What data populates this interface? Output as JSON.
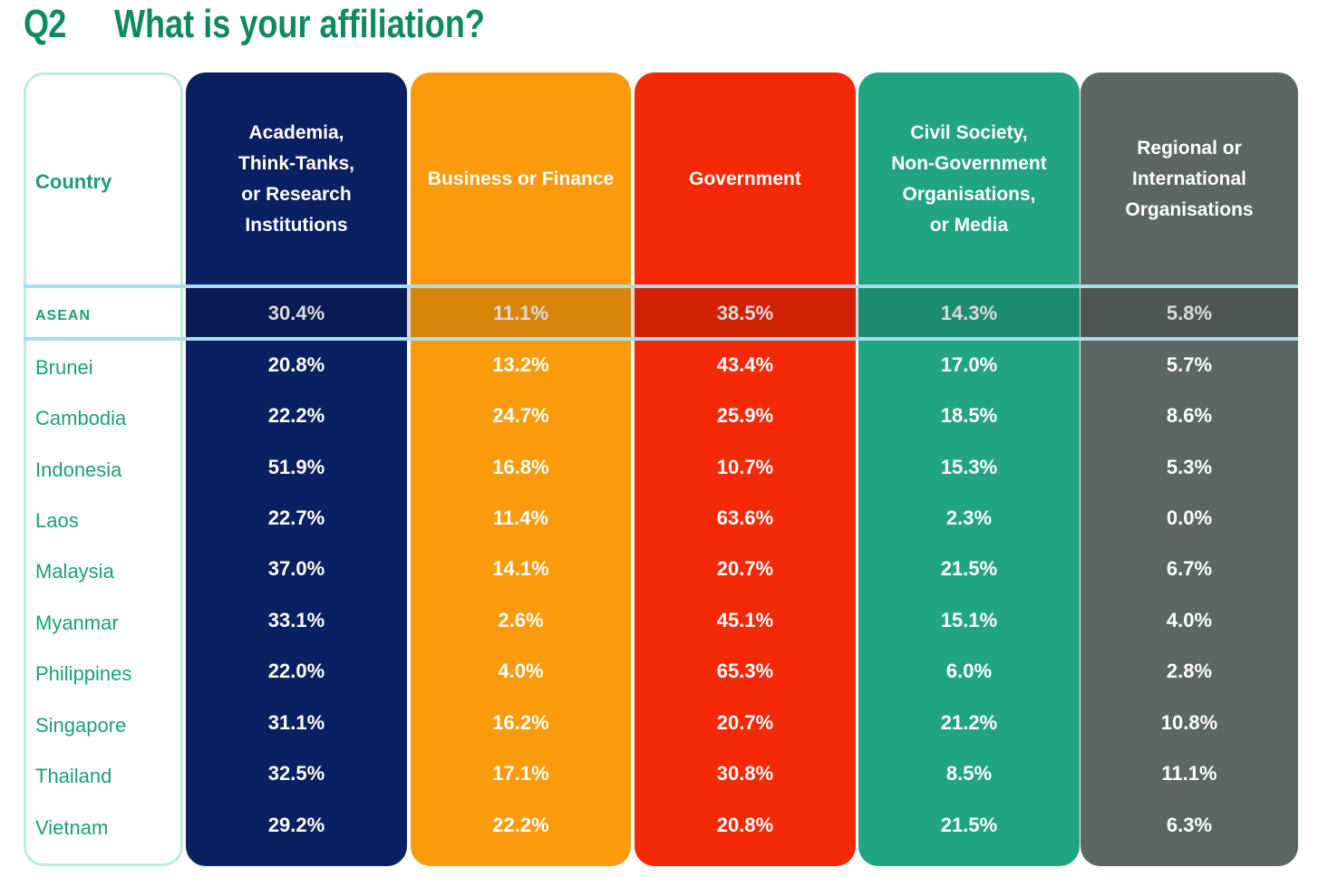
{
  "title": {
    "qnum": "Q2",
    "question": "What is your affiliation?"
  },
  "colors": {
    "title": "#0f8a5f",
    "country": "#1aa07a",
    "academia": "#0b1f63",
    "business": "#fb9b0c",
    "government": "#f52807",
    "civil": "#21a482",
    "regional": "#5c6664"
  },
  "chart_data": {
    "type": "table",
    "title": "What is your affiliation?",
    "row_header": "Country",
    "columns": [
      "Academia, Think-Tanks, or Research Institutions",
      "Business or Finance",
      "Government",
      "Civil Society, Non-Government Organisations, or Media",
      "Regional or International Organisations"
    ],
    "rows": [
      "ASEAN",
      "Brunei",
      "Cambodia",
      "Indonesia",
      "Laos",
      "Malaysia",
      "Myanmar",
      "Philippines",
      "Singapore",
      "Thailand",
      "Vietnam"
    ],
    "series": [
      {
        "name": "Academia, Think-Tanks, or Research Institutions",
        "values": [
          "30.4%",
          "20.8%",
          "22.2%",
          "51.9%",
          "22.7%",
          "37.0%",
          "33.1%",
          "22.0%",
          "31.1%",
          "32.5%",
          "29.2%"
        ]
      },
      {
        "name": "Business or Finance",
        "values": [
          "11.1%",
          "13.2%",
          "24.7%",
          "16.8%",
          "11.4%",
          "14.1%",
          "2.6%",
          "4.0%",
          "16.2%",
          "17.1%",
          "22.2%"
        ]
      },
      {
        "name": "Government",
        "values": [
          "38.5%",
          "43.4%",
          "25.9%",
          "10.7%",
          "63.6%",
          "20.7%",
          "45.1%",
          "65.3%",
          "20.7%",
          "30.8%",
          "20.8%"
        ]
      },
      {
        "name": "Civil Society, Non-Government Organisations, or Media",
        "values": [
          "14.3%",
          "17.0%",
          "18.5%",
          "15.3%",
          "2.3%",
          "21.5%",
          "15.1%",
          "6.0%",
          "21.2%",
          "8.5%",
          "21.5%"
        ]
      },
      {
        "name": "Regional or International Organisations",
        "values": [
          "5.8%",
          "5.7%",
          "8.6%",
          "5.3%",
          "0.0%",
          "6.7%",
          "4.0%",
          "2.8%",
          "10.8%",
          "11.1%",
          "6.3%"
        ]
      }
    ]
  }
}
